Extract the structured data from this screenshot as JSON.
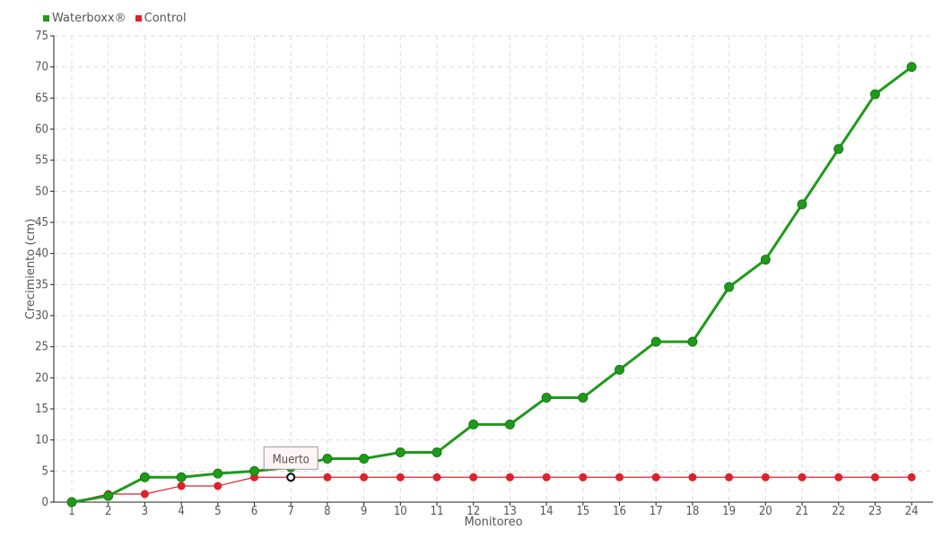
{
  "chart_data": {
    "type": "line",
    "xlabel": "Monitoreo",
    "ylabel": "Crecimiento (cm)",
    "ylim": [
      0,
      75
    ],
    "yticks": [
      0,
      5,
      10,
      15,
      20,
      25,
      30,
      35,
      40,
      45,
      50,
      55,
      60,
      65,
      70,
      75
    ],
    "categories": [
      "1",
      "2",
      "3",
      "4",
      "5",
      "6",
      "7",
      "8",
      "9",
      "10",
      "11",
      "12",
      "13",
      "14",
      "15",
      "16",
      "17",
      "18",
      "19",
      "20",
      "21",
      "22",
      "23",
      "24"
    ],
    "grid": true,
    "legend_position": "top-left",
    "series": [
      {
        "name": "Waterboxx®",
        "color": "#1f9a1a",
        "values": [
          0,
          1,
          4,
          4,
          4.6,
          5,
          5.6,
          7,
          7,
          8,
          8,
          12.5,
          12.5,
          16.8,
          16.8,
          21.3,
          25.8,
          25.8,
          34.6,
          39,
          47.9,
          56.8,
          65.6,
          70
        ]
      },
      {
        "name": "Control",
        "color": "#e0202a",
        "values": [
          0,
          1.3,
          1.3,
          2.6,
          2.6,
          4,
          4,
          4,
          4,
          4,
          4,
          4,
          4,
          4,
          4,
          4,
          4,
          4,
          4,
          4,
          4,
          4,
          4,
          4
        ]
      }
    ],
    "annotations": [
      {
        "series": "Control",
        "index": 6,
        "text": "Muerto"
      }
    ]
  }
}
